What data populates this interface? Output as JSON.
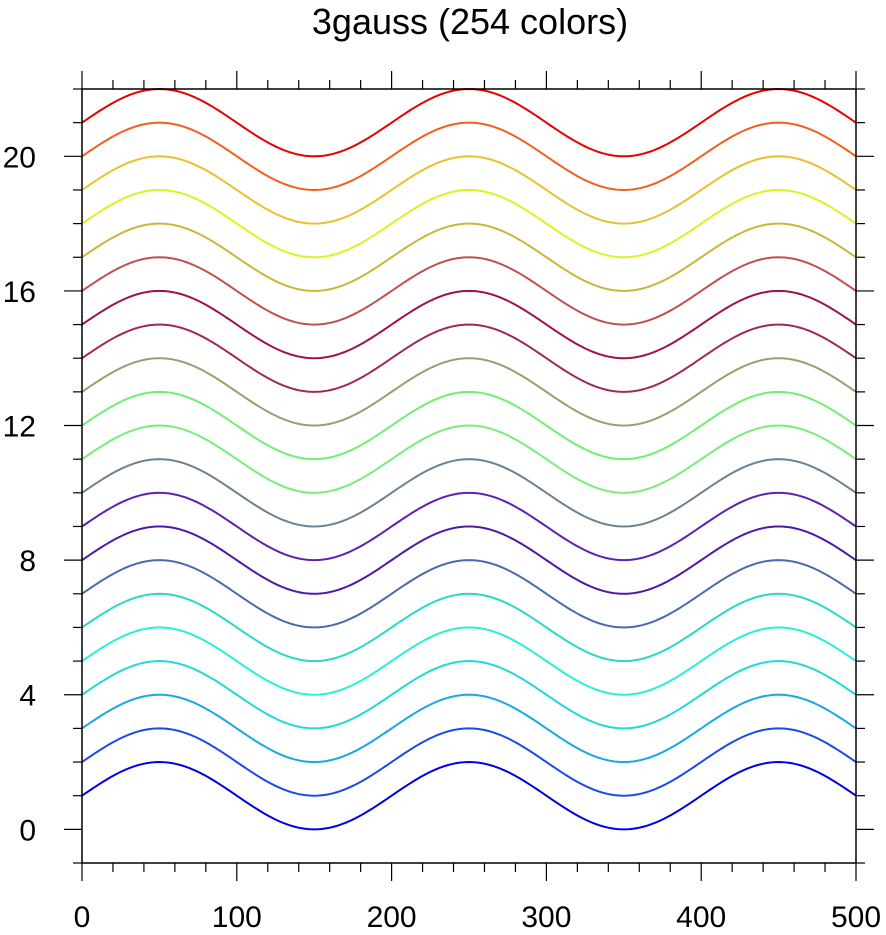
{
  "chart_data": {
    "type": "line",
    "title": "3gauss (254 colors)",
    "xlabel": "",
    "ylabel": "",
    "xlim": [
      0,
      500
    ],
    "ylim": [
      -1,
      22
    ],
    "grid": false,
    "x_ticks": [
      0,
      100,
      200,
      300,
      400,
      500
    ],
    "y_ticks": [
      0,
      4,
      8,
      12,
      16,
      20
    ],
    "x_minor_step": 20,
    "y_minor_step": 1,
    "curve": "y = offset + 1 + sin(2*pi*x/200), x from 0 to 500",
    "series": [
      {
        "offset": 0,
        "color": "#0000e6"
      },
      {
        "offset": 1,
        "color": "#1a4ae8"
      },
      {
        "offset": 2,
        "color": "#1aa8e0"
      },
      {
        "offset": 3,
        "color": "#22d8d8"
      },
      {
        "offset": 4,
        "color": "#28f0d8"
      },
      {
        "offset": 5,
        "color": "#28d8c8"
      },
      {
        "offset": 6,
        "color": "#4a6ab0"
      },
      {
        "offset": 7,
        "color": "#5018a8"
      },
      {
        "offset": 8,
        "color": "#6020b0"
      },
      {
        "offset": 9,
        "color": "#6a8294"
      },
      {
        "offset": 10,
        "color": "#78ee78"
      },
      {
        "offset": 11,
        "color": "#70f070"
      },
      {
        "offset": 12,
        "color": "#98a070"
      },
      {
        "offset": 13,
        "color": "#a02858"
      },
      {
        "offset": 14,
        "color": "#a01050"
      },
      {
        "offset": 15,
        "color": "#c05050"
      },
      {
        "offset": 16,
        "color": "#c8b838"
      },
      {
        "offset": 17,
        "color": "#e0f020"
      },
      {
        "offset": 18,
        "color": "#e8c030"
      },
      {
        "offset": 19,
        "color": "#f06018"
      },
      {
        "offset": 20,
        "color": "#e80000"
      }
    ]
  }
}
